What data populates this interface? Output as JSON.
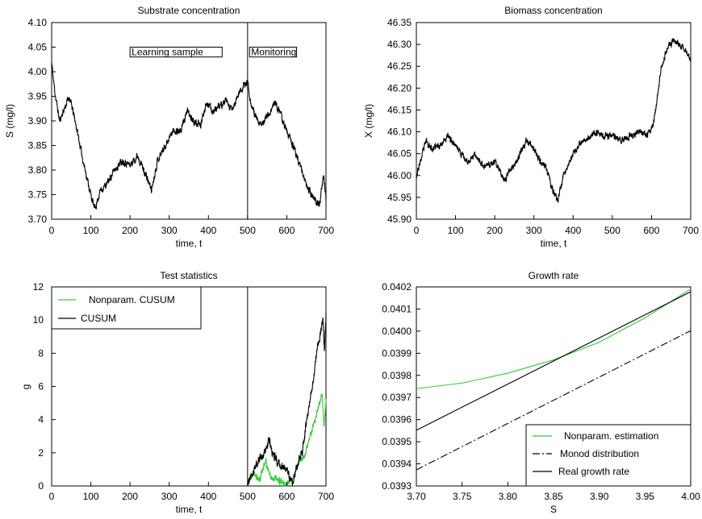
{
  "chart_data": [
    {
      "id": "substrate",
      "type": "line",
      "title": "Substrate concentration",
      "xlabel": "time, t",
      "ylabel": "S (mg/l)",
      "xlim": [
        0,
        700
      ],
      "ylim": [
        3.7,
        4.1
      ],
      "xticks": [
        "0",
        "100",
        "200",
        "300",
        "400",
        "500",
        "600",
        "700"
      ],
      "yticks": [
        "3.70",
        "3.75",
        "3.80",
        "3.85",
        "3.90",
        "3.95",
        "4.00",
        "4.05",
        "4.10"
      ],
      "vline": 500,
      "annotations": [
        {
          "text": "Learning sample",
          "x0": 200,
          "x1": 435,
          "y0": 4.03,
          "y1": 4.05
        },
        {
          "text": "Monitoring",
          "x0": 505,
          "x1": 625,
          "y0": 4.03,
          "y1": 4.05
        }
      ],
      "series": [
        {
          "color": "#000000",
          "noise": 0.012,
          "seed": 11,
          "anchors": [
            [
              0,
              4.02
            ],
            [
              5,
              3.98
            ],
            [
              10,
              3.95
            ],
            [
              20,
              3.9
            ],
            [
              35,
              3.93
            ],
            [
              45,
              3.95
            ],
            [
              60,
              3.9
            ],
            [
              80,
              3.82
            ],
            [
              100,
              3.75
            ],
            [
              110,
              3.72
            ],
            [
              125,
              3.76
            ],
            [
              140,
              3.77
            ],
            [
              160,
              3.8
            ],
            [
              180,
              3.82
            ],
            [
              200,
              3.81
            ],
            [
              220,
              3.83
            ],
            [
              240,
              3.79
            ],
            [
              255,
              3.76
            ],
            [
              270,
              3.82
            ],
            [
              290,
              3.85
            ],
            [
              310,
              3.88
            ],
            [
              330,
              3.88
            ],
            [
              345,
              3.92
            ],
            [
              360,
              3.9
            ],
            [
              380,
              3.89
            ],
            [
              395,
              3.94
            ],
            [
              410,
              3.92
            ],
            [
              430,
              3.93
            ],
            [
              445,
              3.94
            ],
            [
              460,
              3.92
            ],
            [
              480,
              3.96
            ],
            [
              500,
              3.98
            ],
            [
              510,
              3.93
            ],
            [
              520,
              3.91
            ],
            [
              530,
              3.89
            ],
            [
              540,
              3.9
            ],
            [
              560,
              3.92
            ],
            [
              570,
              3.94
            ],
            [
              585,
              3.91
            ],
            [
              600,
              3.88
            ],
            [
              615,
              3.85
            ],
            [
              630,
              3.82
            ],
            [
              650,
              3.77
            ],
            [
              670,
              3.74
            ],
            [
              685,
              3.73
            ],
            [
              690,
              3.77
            ],
            [
              695,
              3.79
            ],
            [
              700,
              3.74
            ]
          ]
        }
      ]
    },
    {
      "id": "biomass",
      "type": "line",
      "title": "Biomass concentration",
      "xlabel": "time, t",
      "ylabel": "X (mg/l)",
      "xlim": [
        0,
        700
      ],
      "ylim": [
        45.9,
        46.35
      ],
      "xticks": [
        "0",
        "100",
        "200",
        "300",
        "400",
        "500",
        "600",
        "700"
      ],
      "yticks": [
        "45.90",
        "45.95",
        "46.00",
        "46.05",
        "46.10",
        "46.15",
        "46.20",
        "46.25",
        "46.30",
        "46.35"
      ],
      "series": [
        {
          "color": "#000000",
          "noise": 0.012,
          "seed": 23,
          "anchors": [
            [
              0,
              46.0
            ],
            [
              10,
              46.03
            ],
            [
              25,
              46.08
            ],
            [
              40,
              46.06
            ],
            [
              60,
              46.07
            ],
            [
              80,
              46.09
            ],
            [
              100,
              46.07
            ],
            [
              115,
              46.05
            ],
            [
              130,
              46.03
            ],
            [
              150,
              46.05
            ],
            [
              170,
              46.02
            ],
            [
              200,
              46.03
            ],
            [
              225,
              45.99
            ],
            [
              245,
              46.02
            ],
            [
              260,
              46.04
            ],
            [
              280,
              46.08
            ],
            [
              295,
              46.07
            ],
            [
              310,
              46.04
            ],
            [
              330,
              46.02
            ],
            [
              350,
              45.96
            ],
            [
              360,
              45.94
            ],
            [
              375,
              46.0
            ],
            [
              395,
              46.04
            ],
            [
              410,
              46.06
            ],
            [
              425,
              46.08
            ],
            [
              445,
              46.09
            ],
            [
              460,
              46.1
            ],
            [
              480,
              46.09
            ],
            [
              500,
              46.09
            ],
            [
              520,
              46.08
            ],
            [
              545,
              46.09
            ],
            [
              570,
              46.1
            ],
            [
              590,
              46.09
            ],
            [
              605,
              46.12
            ],
            [
              615,
              46.18
            ],
            [
              625,
              46.25
            ],
            [
              640,
              46.29
            ],
            [
              655,
              46.31
            ],
            [
              670,
              46.3
            ],
            [
              685,
              46.29
            ],
            [
              700,
              46.27
            ]
          ]
        }
      ]
    },
    {
      "id": "test-statistics",
      "type": "line",
      "title": "Test statistics",
      "xlabel": "time, t",
      "ylabel": "g",
      "xlim": [
        0,
        700
      ],
      "ylim": [
        0,
        12
      ],
      "xticks": [
        "0",
        "100",
        "200",
        "300",
        "400",
        "500",
        "600",
        "700"
      ],
      "yticks": [
        "0",
        "2",
        "4",
        "6",
        "8",
        "10",
        "12"
      ],
      "vline": 500,
      "legend": "top-left",
      "series": [
        {
          "name": "Nonparam. CUSUM",
          "color": "#33cc33",
          "noise": 0.35,
          "seed": 37,
          "anchors": [
            [
              0,
              0
            ],
            [
              500,
              0
            ],
            [
              515,
              0.8
            ],
            [
              530,
              0.3
            ],
            [
              545,
              1.6
            ],
            [
              555,
              0.8
            ],
            [
              565,
              0.5
            ],
            [
              580,
              0.3
            ],
            [
              600,
              0
            ],
            [
              615,
              0.5
            ],
            [
              630,
              1.5
            ],
            [
              645,
              1.8
            ],
            [
              660,
              3.0
            ],
            [
              670,
              3.7
            ],
            [
              680,
              4.6
            ],
            [
              690,
              5.6
            ],
            [
              695,
              3.6
            ],
            [
              700,
              5.0
            ]
          ]
        },
        {
          "name": "CUSUM",
          "color": "#000000",
          "noise": 0.45,
          "seed": 41,
          "anchors": [
            [
              0,
              0
            ],
            [
              500,
              0
            ],
            [
              510,
              0.7
            ],
            [
              525,
              1.5
            ],
            [
              540,
              1.8
            ],
            [
              555,
              2.8
            ],
            [
              565,
              1.8
            ],
            [
              580,
              1.4
            ],
            [
              600,
              0.9
            ],
            [
              615,
              0.2
            ],
            [
              625,
              1.0
            ],
            [
              640,
              2.3
            ],
            [
              655,
              4.5
            ],
            [
              665,
              6.0
            ],
            [
              675,
              7.7
            ],
            [
              685,
              9.2
            ],
            [
              692,
              9.8
            ],
            [
              696,
              8.2
            ],
            [
              700,
              10.4
            ]
          ]
        }
      ]
    },
    {
      "id": "growth-rate",
      "type": "line",
      "title": "Growth rate",
      "xlabel": "S",
      "ylabel": "",
      "xlim": [
        3.7,
        4.0
      ],
      "ylim": [
        0.0393,
        0.0402
      ],
      "xticks": [
        "3.70",
        "3.75",
        "3.80",
        "3.85",
        "3.90",
        "3.95",
        "4.00"
      ],
      "yticks": [
        "0.0393",
        "0.0394",
        "0.0395",
        "0.0396",
        "0.0397",
        "0.0398",
        "0.0399",
        "0.0400",
        "0.0401",
        "0.0402"
      ],
      "legend": "bottom-right",
      "series": [
        {
          "name": "Nonparam. estimation",
          "color": "#33cc33",
          "dash": "none",
          "anchors": [
            [
              3.7,
              0.03974
            ],
            [
              3.75,
              0.039765
            ],
            [
              3.8,
              0.03981
            ],
            [
              3.85,
              0.03987
            ],
            [
              3.9,
              0.03995
            ],
            [
              3.95,
              0.04006
            ],
            [
              4.0,
              0.04019
            ]
          ]
        },
        {
          "name": "Monod distribution",
          "color": "#000000",
          "dash": "9 3 2 3",
          "anchors": [
            [
              3.7,
              0.039373
            ],
            [
              4.0,
              0.040002
            ]
          ]
        },
        {
          "name": "Real growth rate",
          "color": "#000000",
          "dash": "none",
          "anchors": [
            [
              3.7,
              0.039552
            ],
            [
              4.0,
              0.040178
            ]
          ]
        }
      ]
    }
  ]
}
